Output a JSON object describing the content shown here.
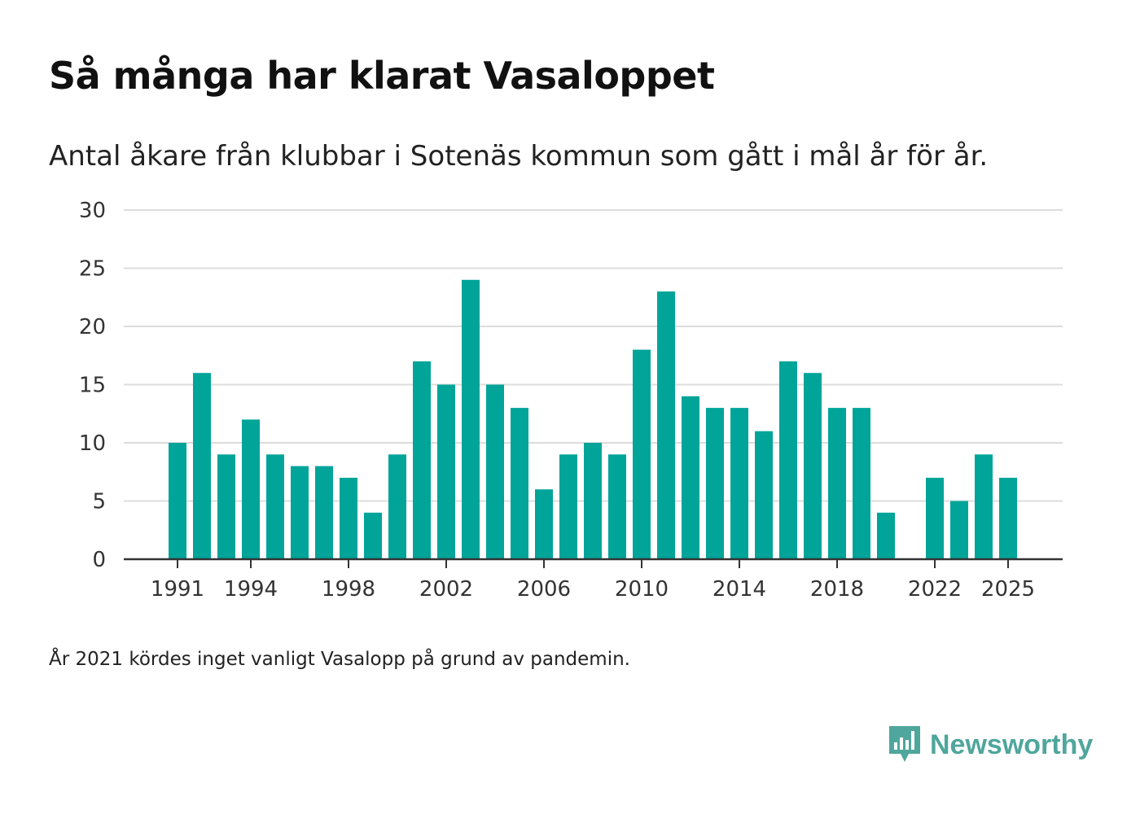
{
  "title": "Så många har klarat Vasaloppet",
  "subtitle": "Antal åkare från klubbar i Sotenäs kommun som gått i mål år för år.",
  "footnote": "År 2021 kördes inget vanligt Vasalopp på grund av pandemin.",
  "brand": {
    "name": "Newsworthy",
    "icon": "newsworthy-logo-icon",
    "color": "#4fa69c"
  },
  "colors": {
    "bar": "#00a499",
    "grid": "#dcdcdc",
    "axis": "#333333"
  },
  "chart_data": {
    "type": "bar",
    "title": "Så många har klarat Vasaloppet",
    "xlabel": "",
    "ylabel": "",
    "ylim": [
      0,
      30
    ],
    "yticks": [
      0,
      5,
      10,
      15,
      20,
      25,
      30
    ],
    "xticks": [
      1991,
      1994,
      1998,
      2002,
      2006,
      2010,
      2014,
      2018,
      2022,
      2025
    ],
    "grid": true,
    "categories": [
      1991,
      1992,
      1993,
      1994,
      1995,
      1996,
      1997,
      1998,
      1999,
      2000,
      2001,
      2002,
      2003,
      2004,
      2005,
      2006,
      2007,
      2008,
      2009,
      2010,
      2011,
      2012,
      2013,
      2014,
      2015,
      2016,
      2017,
      2018,
      2019,
      2020,
      2021,
      2022,
      2023,
      2024,
      2025
    ],
    "values": [
      10,
      16,
      9,
      12,
      9,
      8,
      8,
      7,
      4,
      9,
      17,
      15,
      24,
      15,
      13,
      6,
      9,
      10,
      9,
      18,
      23,
      14,
      13,
      13,
      11,
      17,
      16,
      13,
      13,
      4,
      null,
      7,
      5,
      9,
      7
    ]
  }
}
